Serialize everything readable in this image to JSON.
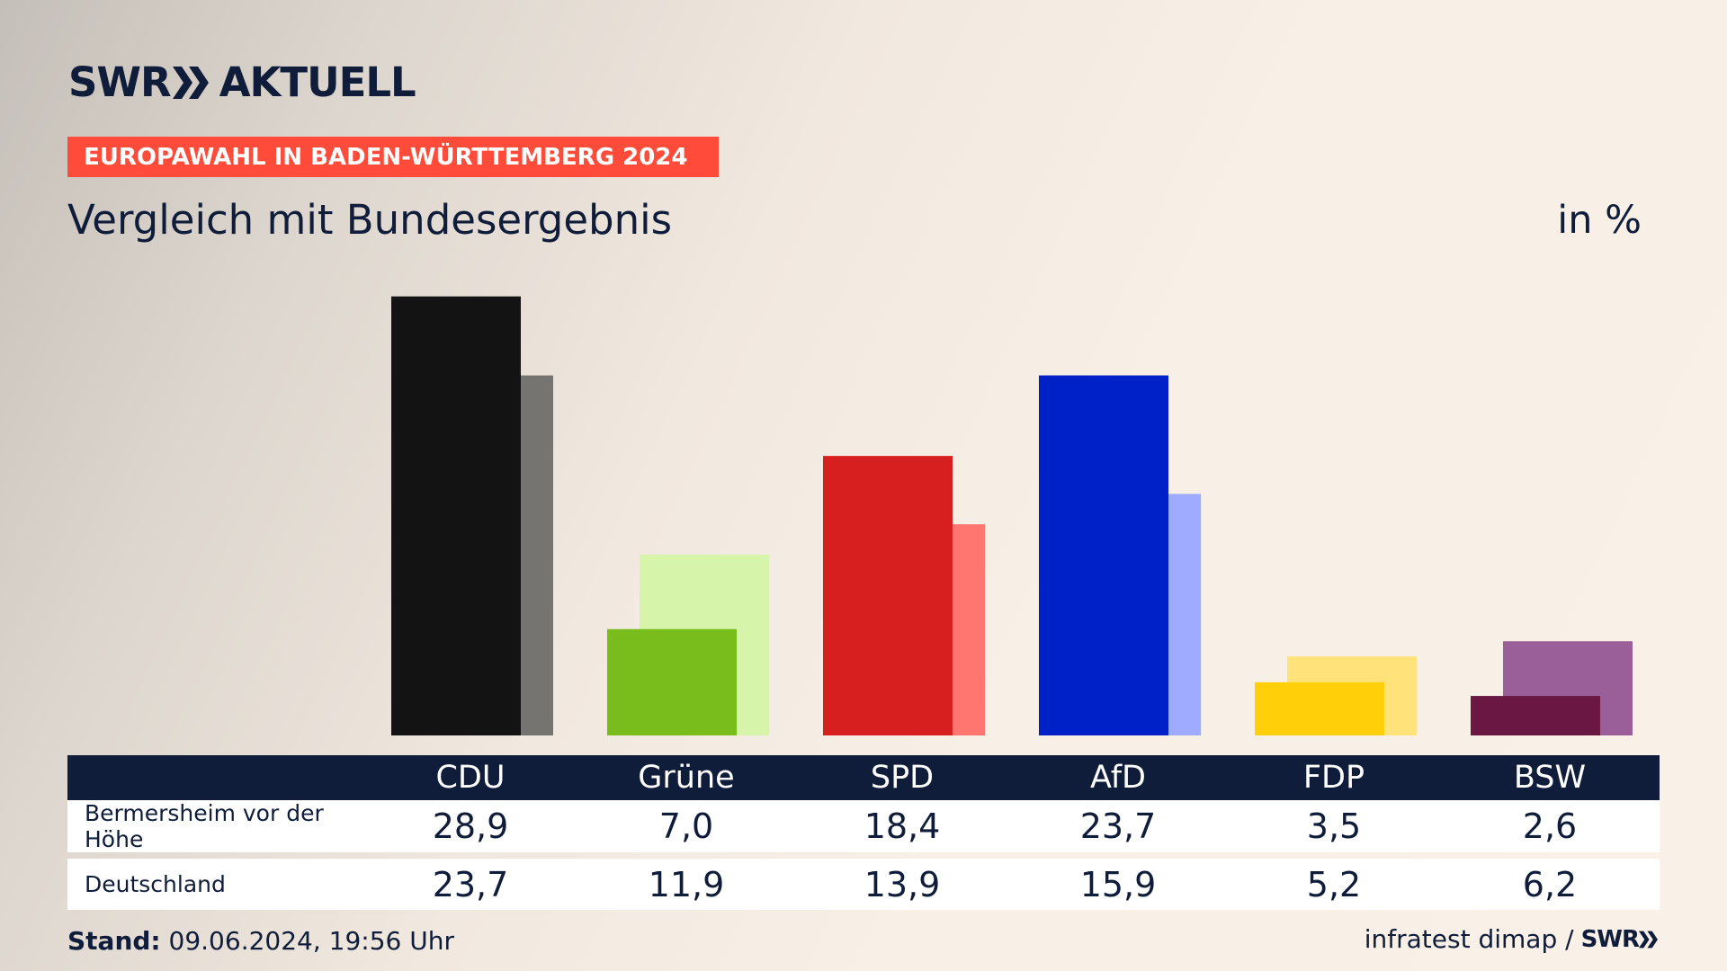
{
  "brand": {
    "logo_left": "SWR",
    "logo_right": "AKTUELL",
    "footer_logo": "SWR"
  },
  "header": {
    "badge": "EUROPAWAHL IN BADEN-WÜRTTEMBERG 2024",
    "title": "Vergleich mit Bundesergebnis",
    "unit": "in %"
  },
  "chart_data": {
    "type": "bar",
    "title": "Vergleich mit Bundesergebnis",
    "unit": "in %",
    "categories": [
      "CDU",
      "Grüne",
      "SPD",
      "AfD",
      "FDP",
      "BSW"
    ],
    "series": [
      {
        "name": "Bermersheim vor der Höhe",
        "values": [
          28.9,
          7.0,
          18.4,
          23.7,
          3.5,
          2.6
        ]
      },
      {
        "name": "Deutschland",
        "values": [
          23.7,
          11.9,
          13.9,
          15.9,
          5.2,
          6.2
        ]
      }
    ],
    "colors_primary": [
      "#131313",
      "#79bd1d",
      "#d81f20",
      "#0020c8",
      "#ffcf0a",
      "#6a1843"
    ],
    "colors_secondary": [
      "#767471",
      "#d6f5ab",
      "#ff756f",
      "#9fabff",
      "#ffe37a",
      "#9a5f98"
    ],
    "ylim": [
      0,
      29
    ]
  },
  "table": {
    "headers": [
      "CDU",
      "Grüne",
      "SPD",
      "AfD",
      "FDP",
      "BSW"
    ],
    "rows": [
      {
        "label": "Bermersheim vor der Höhe",
        "values": [
          "28,9",
          "7,0",
          "18,4",
          "23,7",
          "3,5",
          "2,6"
        ]
      },
      {
        "label": "Deutschland",
        "values": [
          "23,7",
          "11,9",
          "13,9",
          "15,9",
          "5,2",
          "6,2"
        ]
      }
    ]
  },
  "footer": {
    "stand_label": "Stand:",
    "stand_value": "09.06.2024, 19:56 Uhr",
    "source": "infratest dimap /"
  }
}
